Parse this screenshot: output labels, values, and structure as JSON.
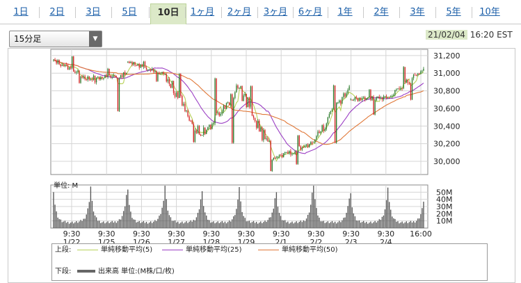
{
  "tabs": [
    {
      "label": "1日",
      "active": false
    },
    {
      "label": "2日",
      "active": false
    },
    {
      "label": "3日",
      "active": false
    },
    {
      "label": "5日",
      "active": false
    },
    {
      "label": "10日",
      "active": true
    },
    {
      "label": "1ヶ月",
      "active": false
    },
    {
      "label": "2ヶ月",
      "active": false
    },
    {
      "label": "3ヶ月",
      "active": false
    },
    {
      "label": "6ヶ月",
      "active": false
    },
    {
      "label": "1年",
      "active": false
    },
    {
      "label": "2年",
      "active": false
    },
    {
      "label": "3年",
      "active": false
    },
    {
      "label": "5年",
      "active": false
    },
    {
      "label": "10年",
      "active": false
    }
  ],
  "interval_select": {
    "value": "15分足"
  },
  "timestamp": {
    "date": "21/02/04",
    "time": "16:20 EST"
  },
  "legend": {
    "upper_label": "上段:",
    "lower_label": "下段:",
    "items": [
      {
        "label": "単純移動平均(5)",
        "color": "#b8d25a"
      },
      {
        "label": "単純移動平均(25)",
        "color": "#9b3fc4"
      },
      {
        "label": "単純移動平均(50)",
        "color": "#e07838"
      }
    ],
    "volume_label": "出来高 単位:(M株/口/枚)"
  },
  "chart_data": {
    "type": "candlestick",
    "days": [
      {
        "date": "1/22",
        "open": 31150,
        "close": 30930,
        "high": 31200,
        "low": 30880
      },
      {
        "date": "1/25",
        "open": 30930,
        "close": 31000,
        "high": 31060,
        "low": 30560
      },
      {
        "date": "1/26",
        "open": 31130,
        "close": 30990,
        "high": 31140,
        "low": 30900
      },
      {
        "date": "1/27",
        "open": 30990,
        "close": 30290,
        "high": 31000,
        "low": 30210
      },
      {
        "date": "1/28",
        "open": 30300,
        "close": 30830,
        "high": 30950,
        "low": 30200
      },
      {
        "date": "1/29",
        "open": 30830,
        "close": 30030,
        "high": 30860,
        "low": 29880
      },
      {
        "date": "2/1",
        "open": 30040,
        "close": 30200,
        "high": 30300,
        "low": 29960
      },
      {
        "date": "2/2",
        "open": 30220,
        "close": 30850,
        "high": 30870,
        "low": 30200
      },
      {
        "date": "2/3",
        "open": 30700,
        "close": 30720,
        "high": 30820,
        "low": 30520
      },
      {
        "date": "2/4",
        "open": 30730,
        "close": 31050,
        "high": 31080,
        "low": 30690
      }
    ],
    "y_ticks": [
      "31,200",
      "31,000",
      "30,800",
      "30,600",
      "30,400",
      "30,200",
      "30,000"
    ],
    "y_tick_values": [
      31200,
      31000,
      30800,
      30600,
      30400,
      30200,
      30000
    ],
    "ylim": [
      29850,
      31270
    ],
    "x_ticks": [
      {
        "time": "9:30",
        "date": "1/22"
      },
      {
        "time": "9:30",
        "date": "1/25"
      },
      {
        "time": "9:30",
        "date": "1/26"
      },
      {
        "time": "9:30",
        "date": "1/27"
      },
      {
        "time": "9:30",
        "date": "1/28"
      },
      {
        "time": "9:30",
        "date": "1/29"
      },
      {
        "time": "9:30",
        "date": "2/1"
      },
      {
        "time": "9:30",
        "date": "2/2"
      },
      {
        "time": "9:30",
        "date": "2/3"
      },
      {
        "time": "9:30",
        "date": "2/4"
      },
      {
        "time": "16:00",
        "date": ""
      }
    ],
    "volume": {
      "label": "単位: M",
      "y_ticks": [
        "50M",
        "40M",
        "30M",
        "20M",
        "10M"
      ],
      "y_tick_values": [
        50,
        40,
        30,
        20,
        10
      ],
      "ylim": [
        0,
        60
      ],
      "open_spikes": [
        44,
        50,
        44,
        55,
        42,
        50,
        41,
        56,
        40,
        50
      ],
      "close_spikes": [
        30,
        38,
        32,
        32,
        30,
        34,
        40,
        34,
        30,
        30
      ]
    },
    "grid": true
  }
}
